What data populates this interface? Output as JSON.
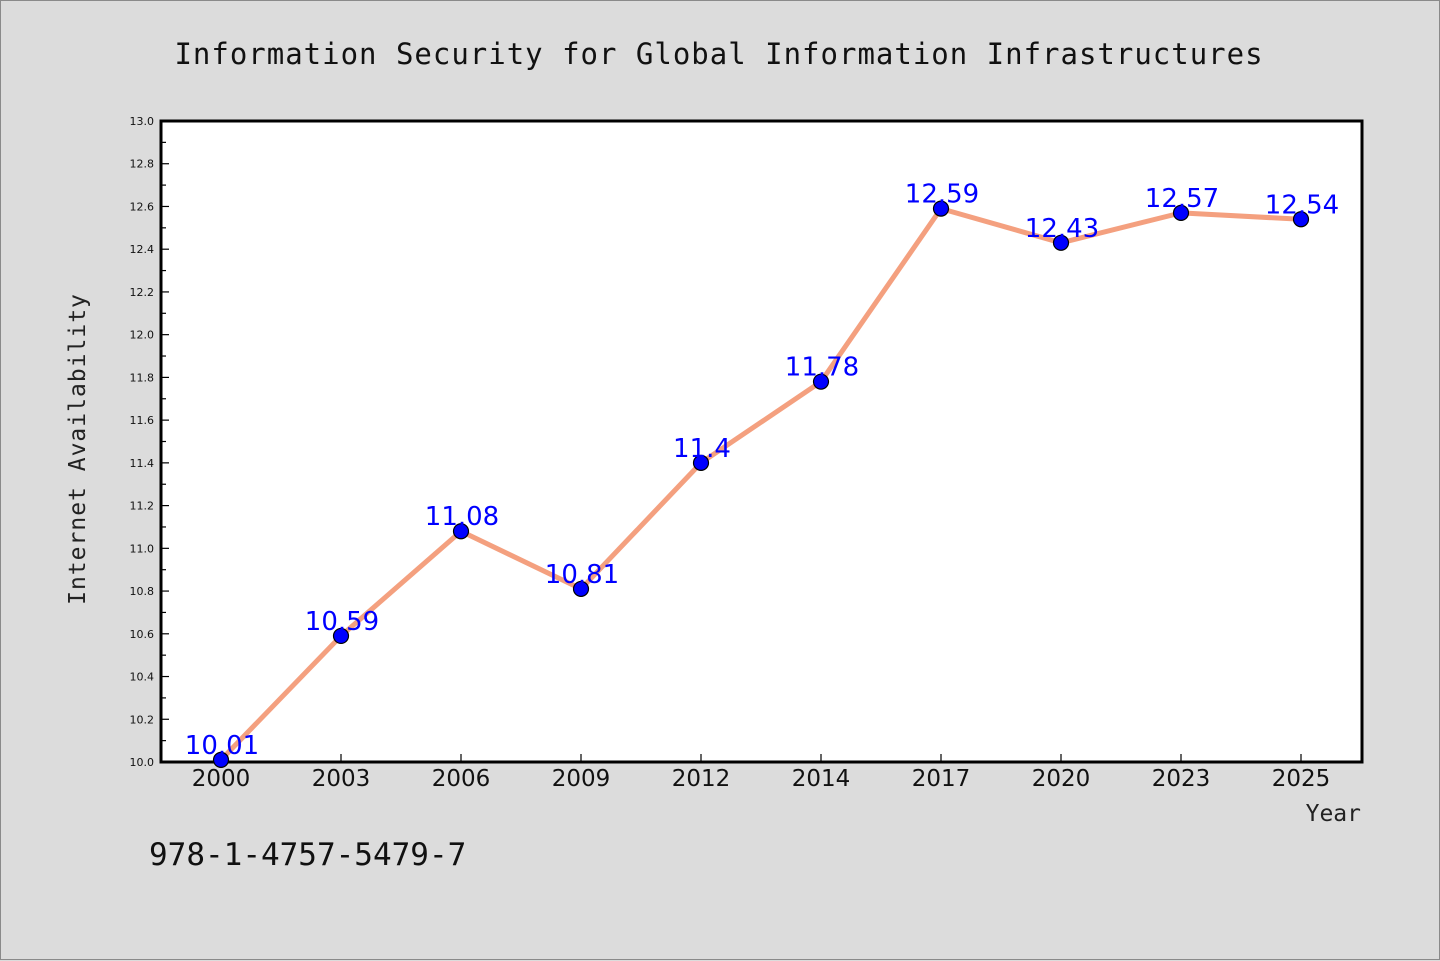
{
  "chart_data": {
    "type": "line",
    "title": "Information Security for Global Information Infrastructures",
    "xlabel": "Year",
    "ylabel": "Internet Availability",
    "categories": [
      "2000",
      "2003",
      "2006",
      "2009",
      "2012",
      "2014",
      "2017",
      "2020",
      "2023",
      "2025"
    ],
    "series": [
      {
        "values": [
          10.01,
          10.59,
          11.08,
          10.81,
          11.4,
          11.78,
          12.59,
          12.43,
          12.57,
          12.54
        ]
      }
    ],
    "data_labels": [
      "10.01",
      "10.59",
      "11.08",
      "10.81",
      "11.4",
      "11.78",
      "12.59",
      "12.43",
      "12.57",
      "12.54"
    ],
    "ylim": [
      10.0,
      13.0
    ],
    "yticks": [
      "10.0",
      "10.2",
      "10.4",
      "10.6",
      "10.8",
      "11.0",
      "11.2",
      "11.4",
      "11.6",
      "11.8",
      "12.0",
      "12.2",
      "12.4",
      "12.6",
      "12.8",
      "13.0"
    ],
    "grid": false,
    "legend": "none",
    "colors": {
      "line": "#f4a07f",
      "marker": "#0000ff",
      "data_label": "#0000ff",
      "plot_background": "#ffffff",
      "figure_background": "#dcdcdc"
    }
  },
  "footer": {
    "isbn": "978-1-4757-5479-7"
  }
}
